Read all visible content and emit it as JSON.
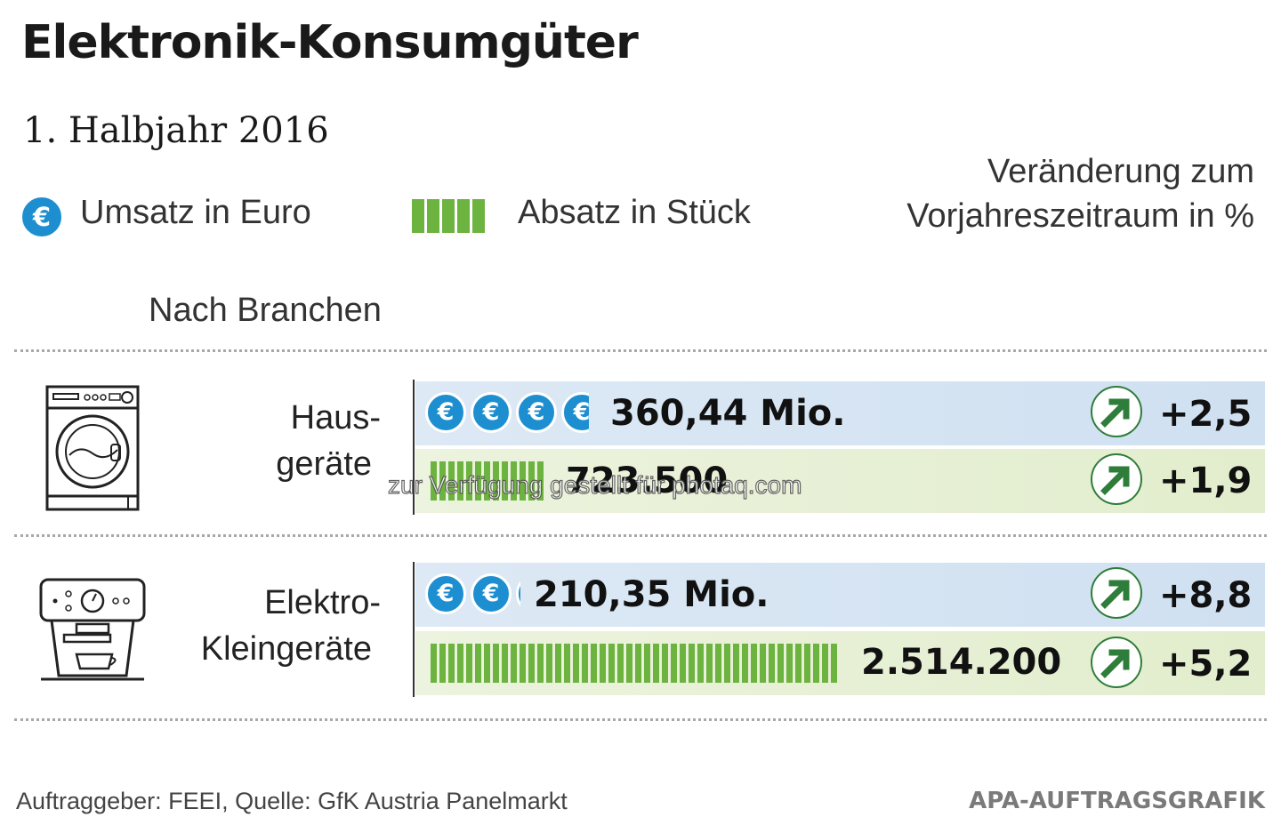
{
  "title": "Elektronik-Konsumgüter",
  "subtitle": "1. Halbjahr 2016",
  "legend": {
    "revenue_label": "Umsatz in Euro",
    "units_label": "Absatz in Stück",
    "euro_symbol": "€"
  },
  "change_header": [
    "Veränderung zum",
    "Vorjahreszeitraum in %"
  ],
  "section_heading": "Nach Branchen",
  "colors": {
    "euro_blue": "#1d8fd0",
    "bar_green": "#6db33f",
    "arrow_green": "#2e7d3a",
    "band_blue": "#d6e5f3",
    "band_green": "#e7f0d6"
  },
  "chart_data": {
    "type": "bar",
    "categories": [
      "Haus-geräte",
      "Elektro-Kleingeräte"
    ],
    "series": [
      {
        "name": "Umsatz in Euro",
        "values": [
          360.44,
          210.35
        ],
        "labels": [
          "360,44 Mio.",
          "210,35 Mio."
        ],
        "change": [
          "+2,5",
          "+8,8"
        ]
      },
      {
        "name": "Absatz in Stück",
        "values": [
          723500,
          2514200
        ],
        "labels": [
          "723.500",
          "2.514.200"
        ],
        "change": [
          "+1,9",
          "+5,2"
        ]
      }
    ]
  },
  "rows": [
    {
      "label_line1": "Haus-",
      "label_line2": "geräte",
      "icon": "washing-machine-icon",
      "revenue_label": "360,44 Mio.",
      "revenue_change": "+2,5",
      "units_label": "723.500",
      "units_change": "+1,9"
    },
    {
      "label_line1": "Elektro-",
      "label_line2": "Kleingeräte",
      "icon": "coffee-machine-icon",
      "revenue_label": "210,35 Mio.",
      "revenue_change": "+8,8",
      "units_label": "2.514.200",
      "units_change": "+5,2"
    }
  ],
  "footer": {
    "source": "Auftraggeber: FEEI, Quelle: GfK Austria Panelmarkt",
    "credit": "APA-AUFTRAGSGRAFIK"
  },
  "watermark": "zur Verfügung gestellt für photaq.com"
}
